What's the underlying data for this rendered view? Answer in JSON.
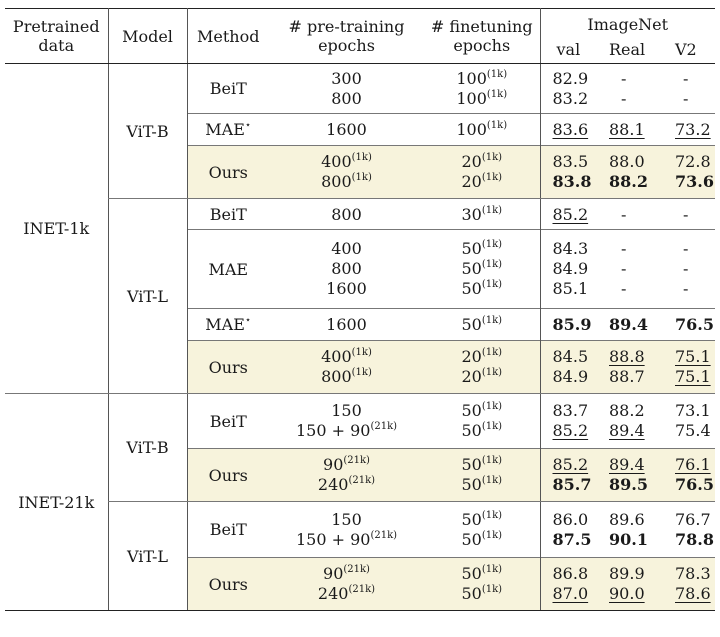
{
  "header": {
    "pretrained": [
      "Pretrained",
      "data"
    ],
    "model": "Model",
    "method": "Method",
    "pre_epochs": [
      "# pre-training",
      "epochs"
    ],
    "ft_epochs": [
      "# finetuning",
      "epochs"
    ],
    "imagenet": "ImageNet",
    "val": "val",
    "real": "Real",
    "v2": "V2"
  },
  "groups": {
    "inet1k": "INET-1k",
    "inet21k": "INET-21k"
  },
  "models": {
    "vitb_1k": "ViT-B",
    "vitl_1k": "ViT-L",
    "vitb_21k": "ViT-B",
    "vitl_21k": "ViT-L"
  },
  "methods": {
    "beit": "BeiT",
    "mae": "MAE",
    "mae_star": "MAE",
    "star": "⋆",
    "ours": "Ours"
  },
  "sup": {
    "k1": "(1k)",
    "k21": "(21k)"
  },
  "rows": {
    "r1": {
      "pre": [
        "300",
        "800"
      ],
      "ft": [
        "100",
        "100"
      ],
      "val": [
        "82.9",
        "83.2"
      ],
      "real": [
        "-",
        "-"
      ],
      "v2": [
        "-",
        "-"
      ]
    },
    "r2": {
      "pre": "1600",
      "ft": "100",
      "val": "83.6",
      "real": "88.1",
      "v2": "73.2"
    },
    "r3": {
      "pre": [
        "400",
        "800"
      ],
      "ft": [
        "20",
        "20"
      ],
      "val": [
        "83.5",
        "83.8"
      ],
      "real": [
        "88.0",
        "88.2"
      ],
      "v2": [
        "72.8",
        "73.6"
      ]
    },
    "r4": {
      "pre": "800",
      "ft": "30",
      "val": "85.2",
      "real": "-",
      "v2": "-"
    },
    "r5": {
      "pre": [
        "400",
        "800",
        "1600"
      ],
      "ft": [
        "50",
        "50",
        "50"
      ],
      "val": [
        "84.3",
        "84.9",
        "85.1"
      ],
      "real": [
        "-",
        "-",
        "-"
      ],
      "v2": [
        "-",
        "-",
        "-"
      ]
    },
    "r6": {
      "pre": "1600",
      "ft": "50",
      "val": "85.9",
      "real": "89.4",
      "v2": "76.5"
    },
    "r7": {
      "pre": [
        "400",
        "800"
      ],
      "ft": [
        "20",
        "20"
      ],
      "val": [
        "84.5",
        "84.9"
      ],
      "real": [
        "88.8",
        "88.7"
      ],
      "v2": [
        "75.1",
        "75.1"
      ]
    },
    "r8": {
      "pre": [
        "150",
        "150 + 90"
      ],
      "ft": [
        "50",
        "50"
      ],
      "val": [
        "83.7",
        "85.2"
      ],
      "real": [
        "88.2",
        "89.4"
      ],
      "v2": [
        "73.1",
        "75.4"
      ]
    },
    "r9": {
      "pre": [
        "90",
        "240"
      ],
      "ft": [
        "50",
        "50"
      ],
      "val": [
        "85.2",
        "85.7"
      ],
      "real": [
        "89.4",
        "89.5"
      ],
      "v2": [
        "76.1",
        "76.5"
      ]
    },
    "r10": {
      "pre": [
        "150",
        "150 + 90"
      ],
      "ft": [
        "50",
        "50"
      ],
      "val": [
        "86.0",
        "87.5"
      ],
      "real": [
        "89.6",
        "90.1"
      ],
      "v2": [
        "76.7",
        "78.8"
      ]
    },
    "r11": {
      "pre": [
        "90",
        "240"
      ],
      "ft": [
        "50",
        "50"
      ],
      "val": [
        "86.8",
        "87.0"
      ],
      "real": [
        "89.9",
        "90.0"
      ],
      "v2": [
        "78.3",
        "78.6"
      ]
    }
  },
  "colors": {
    "highlight": "#f7f3dc",
    "rule": "#222222"
  }
}
